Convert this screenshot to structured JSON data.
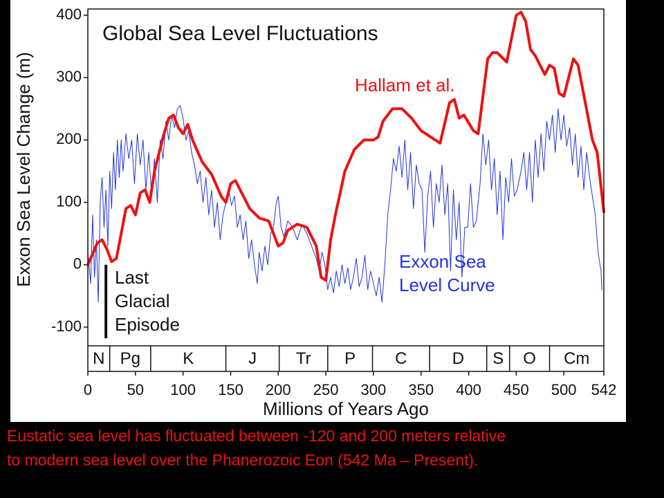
{
  "chart_data": {
    "type": "line",
    "title": "Global Sea Level Fluctuations",
    "xlabel": "Millions of Years Ago",
    "ylabel": "Exxon Sea Level Change (m)",
    "xlim": [
      0,
      542
    ],
    "ylim": [
      -130,
      410
    ],
    "xticks": [
      0,
      50,
      100,
      150,
      200,
      250,
      300,
      350,
      400,
      450,
      500,
      542
    ],
    "yticks": [
      -100,
      0,
      100,
      200,
      300,
      400
    ],
    "annotations": {
      "hallam": "Hallam et al.",
      "exxon": [
        "Exxon Sea",
        "Level Curve"
      ],
      "glacial": [
        "Last",
        "Glacial",
        "Episode"
      ]
    },
    "glacial_bar": {
      "x": 19,
      "y": [
        0,
        -118
      ]
    },
    "periods": [
      {
        "label": "N",
        "start": 0,
        "end": 23
      },
      {
        "label": "Pg",
        "start": 23,
        "end": 66
      },
      {
        "label": "K",
        "start": 66,
        "end": 145
      },
      {
        "label": "J",
        "start": 145,
        "end": 201
      },
      {
        "label": "Tr",
        "start": 201,
        "end": 252
      },
      {
        "label": "P",
        "start": 252,
        "end": 299
      },
      {
        "label": "C",
        "start": 299,
        "end": 359
      },
      {
        "label": "D",
        "start": 359,
        "end": 419
      },
      {
        "label": "S",
        "start": 419,
        "end": 443
      },
      {
        "label": "O",
        "start": 443,
        "end": 485
      },
      {
        "label": "Cm",
        "start": 485,
        "end": 542
      }
    ],
    "series": [
      {
        "name": "Exxon Sea Level Curve",
        "color": "#2233dd",
        "width": 1,
        "x": [
          0,
          3,
          5,
          7,
          9,
          11,
          13,
          15,
          17,
          19,
          21,
          23,
          25,
          27,
          29,
          31,
          33,
          35,
          37,
          40,
          43,
          46,
          49,
          52,
          55,
          58,
          61,
          64,
          67,
          70,
          73,
          76,
          79,
          82,
          85,
          88,
          91,
          94,
          97,
          100,
          103,
          106,
          109,
          112,
          115,
          118,
          121,
          124,
          127,
          130,
          133,
          136,
          139,
          142,
          145,
          148,
          151,
          154,
          157,
          160,
          163,
          166,
          169,
          172,
          175,
          178,
          180,
          183,
          186,
          189,
          192,
          195,
          198,
          200,
          203,
          206,
          210,
          215,
          220,
          225,
          230,
          235,
          240,
          243,
          246,
          249,
          252,
          255,
          258,
          261,
          264,
          267,
          270,
          273,
          276,
          279,
          282,
          285,
          288,
          291,
          294,
          297,
          300,
          303,
          306,
          309,
          312,
          315,
          318,
          321,
          324,
          327,
          330,
          333,
          336,
          339,
          342,
          345,
          348,
          351,
          354,
          357,
          360,
          363,
          366,
          369,
          372,
          375,
          378,
          381,
          384,
          387,
          390,
          393,
          396,
          399,
          402,
          405,
          408,
          412,
          415,
          418,
          421,
          424,
          427,
          430,
          433,
          436,
          439,
          442,
          445,
          448,
          451,
          455,
          458,
          461,
          464,
          467,
          470,
          473,
          476,
          479,
          482,
          485,
          488,
          491,
          494,
          497,
          500,
          503,
          506,
          509,
          512,
          515,
          518,
          521,
          524,
          527,
          530,
          533,
          536,
          539,
          540
        ],
        "values": [
          20,
          -30,
          80,
          -20,
          40,
          -60,
          100,
          140,
          60,
          120,
          30,
          150,
          90,
          180,
          120,
          200,
          140,
          200,
          150,
          210,
          170,
          200,
          130,
          210,
          160,
          200,
          120,
          180,
          110,
          170,
          100,
          200,
          170,
          230,
          200,
          240,
          220,
          250,
          255,
          235,
          200,
          215,
          180,
          160,
          130,
          150,
          100,
          140,
          80,
          120,
          60,
          100,
          40,
          80,
          100,
          120,
          95,
          110,
          60,
          80,
          40,
          70,
          10,
          40,
          0,
          -30,
          20,
          -10,
          30,
          0,
          50,
          60,
          100,
          110,
          60,
          45,
          70,
          60,
          40,
          65,
          50,
          30,
          10,
          -10,
          20,
          0,
          -40,
          -20,
          -45,
          -10,
          -35,
          0,
          -30,
          -5,
          -40,
          -20,
          10,
          -35,
          -20,
          15,
          -40,
          -10,
          -30,
          -50,
          -20,
          -60,
          0,
          80,
          120,
          170,
          150,
          190,
          140,
          200,
          120,
          180,
          90,
          160,
          130,
          120,
          20,
          110,
          150,
          60,
          130,
          100,
          160,
          80,
          130,
          -10,
          120,
          40,
          100,
          -20,
          60,
          60,
          130,
          60,
          70,
          130,
          210,
          160,
          200,
          120,
          170,
          80,
          150,
          40,
          140,
          100,
          170,
          110,
          120,
          150,
          180,
          120,
          180,
          100,
          200,
          140,
          210,
          150,
          230,
          200,
          240,
          180,
          250,
          200,
          240,
          190,
          220,
          160,
          210,
          140,
          190,
          120,
          180,
          140,
          110,
          80,
          20,
          -10,
          -40
        ]
      },
      {
        "name": "Hallam et al.",
        "color": "#ee1111",
        "width": 4,
        "x": [
          0,
          10,
          15,
          20,
          25,
          30,
          40,
          45,
          50,
          55,
          60,
          65,
          70,
          80,
          85,
          90,
          95,
          100,
          105,
          110,
          120,
          130,
          140,
          145,
          150,
          155,
          160,
          170,
          180,
          190,
          200,
          205,
          210,
          220,
          230,
          240,
          245,
          250,
          255,
          260,
          270,
          280,
          290,
          300,
          305,
          310,
          320,
          330,
          340,
          350,
          360,
          370,
          380,
          385,
          390,
          395,
          405,
          410,
          420,
          425,
          430,
          440,
          450,
          455,
          460,
          465,
          470,
          480,
          485,
          490,
          495,
          500,
          505,
          510,
          515,
          525,
          530,
          535,
          542
        ],
        "values": [
          0,
          35,
          40,
          25,
          5,
          10,
          90,
          95,
          80,
          115,
          120,
          100,
          150,
          210,
          235,
          240,
          220,
          210,
          225,
          200,
          165,
          145,
          110,
          100,
          130,
          135,
          120,
          90,
          75,
          70,
          30,
          35,
          55,
          65,
          60,
          30,
          -20,
          -25,
          40,
          80,
          150,
          185,
          200,
          200,
          205,
          230,
          250,
          250,
          235,
          215,
          205,
          195,
          260,
          265,
          235,
          240,
          215,
          210,
          330,
          340,
          340,
          325,
          400,
          405,
          390,
          345,
          335,
          305,
          320,
          315,
          275,
          270,
          300,
          330,
          320,
          240,
          200,
          180,
          85
        ]
      }
    ]
  },
  "caption": [
    "Eustatic sea level has fluctuated between -120 and 200 meters relative",
    "to modern sea level over the Phanerozoic Eon (542 Ma – Present)."
  ]
}
